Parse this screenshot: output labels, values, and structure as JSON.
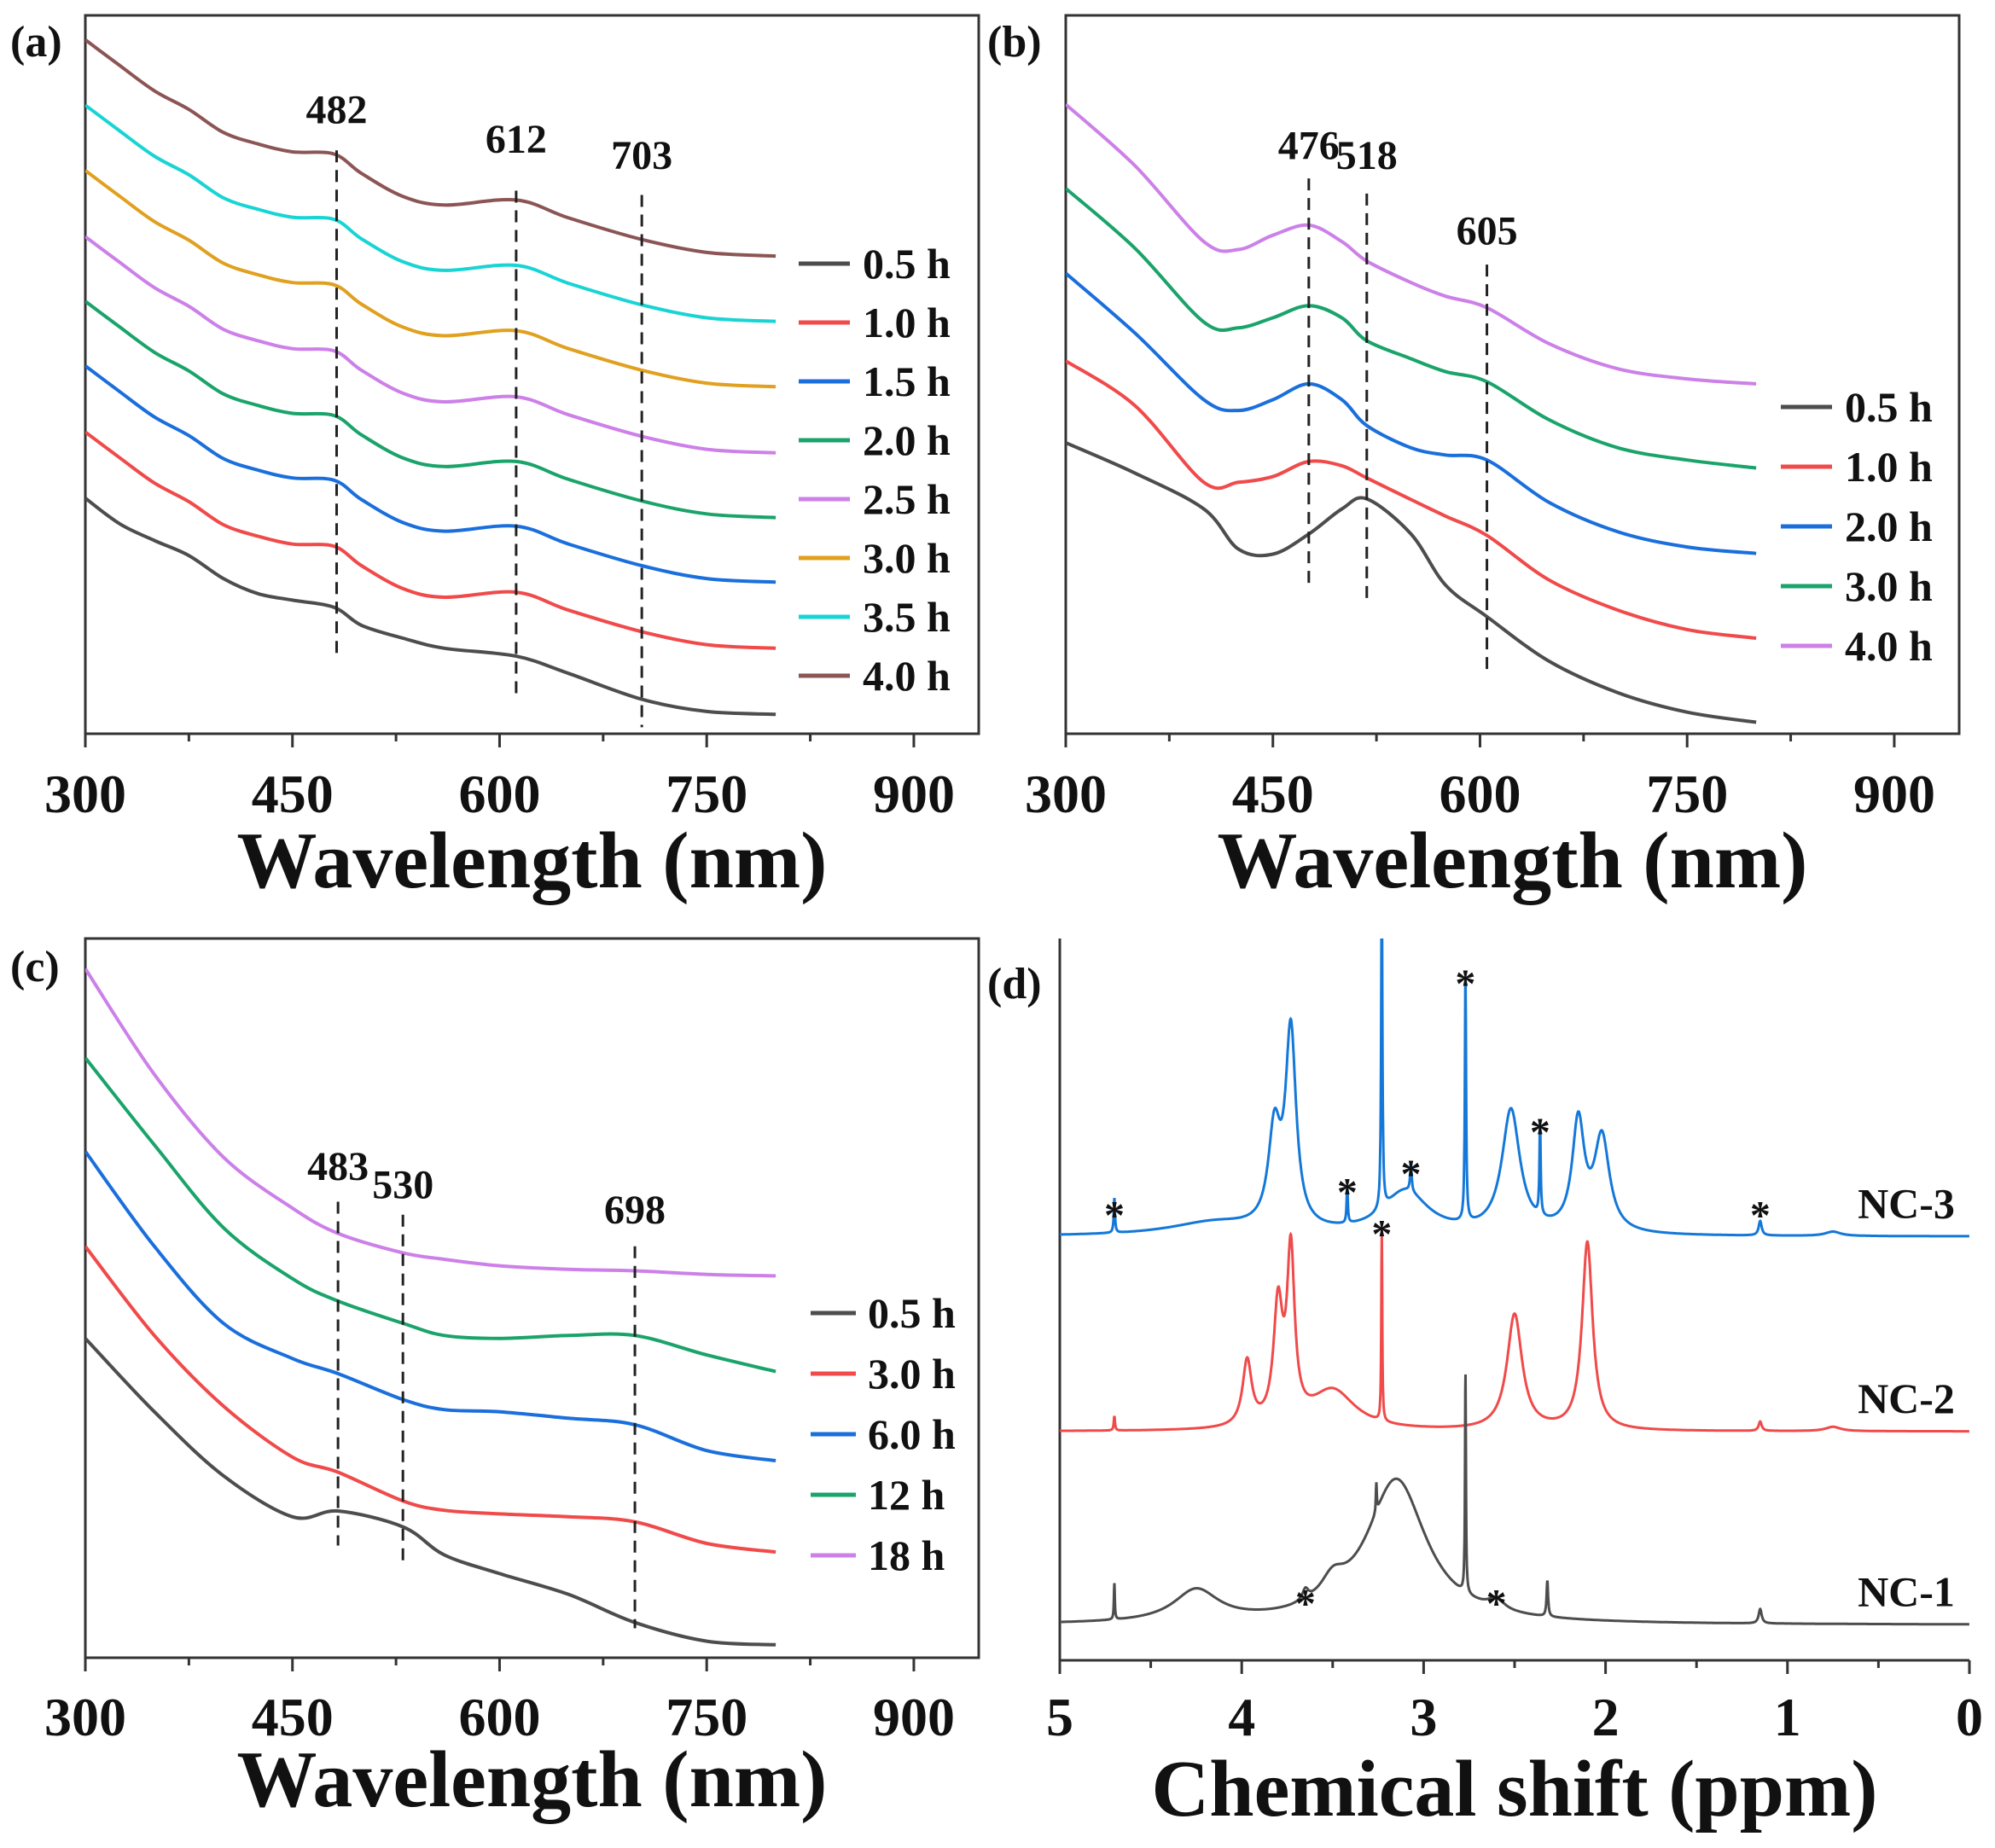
{
  "chart_data": [
    {
      "panel_label": "(a)",
      "type": "line",
      "xlabel": "Wavelength (nm)",
      "xlim": [
        300,
        947
      ],
      "ylim": [
        0,
        100
      ],
      "xticks": [
        300,
        450,
        600,
        750,
        900
      ],
      "grid": false,
      "legend": "right",
      "x": [
        300,
        325,
        350,
        375,
        400,
        425,
        450,
        480,
        500,
        530,
        560,
        612,
        650,
        703,
        750,
        800
      ],
      "series": [
        {
          "name": "0.5 h",
          "color": "#4d4d4d",
          "values": [
            32.8,
            29.2,
            26.9,
            24.8,
            21.6,
            19.5,
            18.6,
            17.6,
            15.1,
            13.3,
            11.9,
            10.8,
            8.4,
            4.8,
            3.1,
            2.7
          ]
        },
        {
          "name": "1.0 h",
          "color": "#f04a4a",
          "values": [
            42.0,
            38.4,
            34.9,
            32.3,
            29.1,
            27.5,
            26.4,
            26.1,
            23.4,
            20.2,
            19.0,
            19.7,
            17.2,
            14.2,
            12.4,
            11.9
          ]
        },
        {
          "name": "1.5 h",
          "color": "#1a6fdc",
          "values": [
            51.2,
            47.6,
            44.1,
            41.5,
            38.3,
            36.7,
            35.6,
            35.3,
            32.6,
            29.4,
            28.2,
            28.9,
            26.4,
            23.4,
            21.6,
            21.1
          ]
        },
        {
          "name": "2.0 h",
          "color": "#1aa36a",
          "values": [
            60.2,
            56.6,
            53.1,
            50.5,
            47.3,
            45.7,
            44.6,
            44.3,
            41.6,
            38.4,
            37.2,
            37.9,
            35.4,
            32.4,
            30.6,
            30.1
          ]
        },
        {
          "name": "2.5 h",
          "color": "#cc80e8",
          "values": [
            69.2,
            65.6,
            62.1,
            59.5,
            56.3,
            54.7,
            53.6,
            53.3,
            50.6,
            47.4,
            46.2,
            46.9,
            44.4,
            41.4,
            39.6,
            39.1
          ]
        },
        {
          "name": "3.0 h",
          "color": "#e0a020",
          "values": [
            78.4,
            74.8,
            71.3,
            68.7,
            65.5,
            63.9,
            62.8,
            62.5,
            59.8,
            56.6,
            55.4,
            56.1,
            53.6,
            50.6,
            48.8,
            48.3
          ]
        },
        {
          "name": "3.5 h",
          "color": "#19d4d4",
          "values": [
            87.5,
            83.9,
            80.4,
            77.8,
            74.6,
            73.0,
            71.9,
            71.6,
            68.9,
            65.7,
            64.5,
            65.2,
            62.7,
            59.7,
            57.9,
            57.4
          ]
        },
        {
          "name": "4.0 h",
          "color": "#8c5555",
          "values": [
            96.6,
            93.0,
            89.5,
            86.9,
            83.7,
            82.1,
            81.0,
            80.7,
            78.0,
            74.8,
            73.6,
            74.3,
            71.8,
            68.8,
            67.0,
            66.5
          ]
        }
      ],
      "annotations": [
        {
          "label": "482",
          "x": 482,
          "y_top": 81.2,
          "y_bottom": 11.0,
          "label_y": 85.0
        },
        {
          "label": "612",
          "x": 612,
          "y_top": 75.6,
          "y_bottom": 5.5,
          "label_y": 80.9
        },
        {
          "label": "703",
          "x": 703,
          "y_top": 75.0,
          "y_bottom": 0.9,
          "label_y": 78.6
        }
      ]
    },
    {
      "panel_label": "(b)",
      "type": "line",
      "xlabel": "Wavelength (nm)",
      "xlim": [
        300,
        947
      ],
      "ylim": [
        0,
        100
      ],
      "xticks": [
        300,
        450,
        600,
        750,
        900
      ],
      "grid": false,
      "legend": "right",
      "x": [
        300,
        350,
        400,
        425,
        450,
        476,
        500,
        518,
        550,
        575,
        605,
        650,
        700,
        750,
        800
      ],
      "series": [
        {
          "name": "0.5 h",
          "color": "#4d4d4d",
          "values": [
            40.5,
            36.3,
            31.3,
            25.7,
            25.0,
            27.8,
            31.3,
            32.7,
            27.8,
            20.7,
            16.3,
            10.1,
            5.7,
            3.0,
            1.6
          ]
        },
        {
          "name": "1.0 h",
          "color": "#f04a4a",
          "values": [
            51.9,
            45.7,
            35.0,
            35.0,
            35.8,
            37.9,
            37.3,
            35.6,
            32.6,
            30.3,
            27.6,
            21.4,
            17.2,
            14.5,
            13.3
          ]
        },
        {
          "name": "2.0 h",
          "color": "#1a6fdc",
          "values": [
            64.1,
            55.8,
            46.5,
            45.0,
            46.5,
            48.7,
            46.5,
            42.9,
            39.8,
            38.8,
            38.1,
            32.2,
            28.1,
            26.0,
            25.1
          ]
        },
        {
          "name": "3.0 h",
          "color": "#1aa36a",
          "values": [
            75.9,
            67.6,
            57.3,
            56.5,
            57.9,
            59.6,
            57.9,
            54.7,
            52.2,
            50.4,
            49.0,
            43.7,
            39.8,
            38.1,
            37.0
          ]
        },
        {
          "name": "4.0 h",
          "color": "#cc80e8",
          "values": [
            87.6,
            79.1,
            68.5,
            67.4,
            69.4,
            70.8,
            68.5,
            65.8,
            62.8,
            60.9,
            59.3,
            54.3,
            50.8,
            49.4,
            48.7
          ]
        }
      ],
      "annotations": [
        {
          "label": "476",
          "x": 476,
          "y_top": 77.3,
          "y_bottom": 20.7,
          "label_y": 80.0
        },
        {
          "label": "518",
          "x": 518,
          "y_top": 75.2,
          "y_bottom": 18.9,
          "label_y": 78.6
        },
        {
          "label": "605",
          "x": 605,
          "y_top": 65.3,
          "y_bottom": 8.3,
          "label_y": 68.1
        }
      ]
    },
    {
      "panel_label": "(c)",
      "type": "line",
      "xlabel": "Wavelength (nm)",
      "xlim": [
        300,
        947
      ],
      "ylim": [
        0,
        100
      ],
      "xticks": [
        300,
        450,
        600,
        750,
        900
      ],
      "grid": false,
      "legend": "right",
      "x": [
        300,
        350,
        400,
        450,
        483,
        530,
        560,
        600,
        650,
        698,
        750,
        800
      ],
      "series": [
        {
          "name": "0.5 h",
          "color": "#4d4d4d",
          "values": [
            44.4,
            34.2,
            25.3,
            19.6,
            20.4,
            18.2,
            14.3,
            11.7,
            8.8,
            4.9,
            2.3,
            1.8
          ]
        },
        {
          "name": "3.0 h",
          "color": "#f04a4a",
          "values": [
            57.2,
            44.8,
            35.0,
            27.9,
            25.8,
            21.8,
            20.5,
            20.0,
            19.6,
            18.9,
            15.9,
            14.7
          ]
        },
        {
          "name": "6.0 h",
          "color": "#1a6fdc",
          "values": [
            70.4,
            57.2,
            46.5,
            41.6,
            39.5,
            35.9,
            34.5,
            34.2,
            33.3,
            32.4,
            28.8,
            27.4
          ]
        },
        {
          "name": "12 h",
          "color": "#1aa36a",
          "values": [
            83.4,
            71.3,
            59.8,
            52.7,
            49.6,
            46.5,
            44.8,
            44.4,
            44.8,
            44.8,
            42.1,
            39.8
          ]
        },
        {
          "name": "18 h",
          "color": "#cc80e8",
          "values": [
            95.8,
            81.1,
            69.6,
            62.5,
            59.0,
            56.3,
            55.4,
            54.5,
            54.0,
            53.8,
            53.3,
            53.1
          ]
        }
      ],
      "annotations": [
        {
          "label": "483",
          "x": 483,
          "y_top": 63.4,
          "y_bottom": 15.6,
          "label_y": 66.4
        },
        {
          "label": "530",
          "x": 530,
          "y_top": 61.6,
          "y_bottom": 12.9,
          "label_y": 63.9
        },
        {
          "label": "698",
          "x": 698,
          "y_top": 57.2,
          "y_bottom": 4.1,
          "label_y": 60.4
        }
      ]
    },
    {
      "panel_label": "(d)",
      "type": "line",
      "xlabel": "Chemical shift (ppm)",
      "xlim": [
        5,
        0
      ],
      "ylim": [
        0,
        100
      ],
      "xticks": [
        5,
        4,
        3,
        2,
        1,
        0
      ],
      "grid": false,
      "legend": "none",
      "marker": "*",
      "series": [
        {
          "name": "NC-3",
          "color": "#1478d8",
          "baseline": 58.7,
          "peaks": [
            [
              4.7,
              4.8,
              0.004
            ],
            [
              4.15,
              1.8,
              0.3
            ],
            [
              3.82,
              13,
              0.04
            ],
            [
              3.73,
              27,
              0.035
            ],
            [
              3.42,
              5.1,
              0.004
            ],
            [
              3.23,
              45,
              0.004
            ],
            [
              3.1,
              6,
              0.15
            ],
            [
              3.07,
              4,
              0.005
            ],
            [
              2.77,
              34.2,
              0.004
            ],
            [
              2.52,
              17,
              0.06
            ],
            [
              2.36,
              13,
              0.004
            ],
            [
              2.15,
              15,
              0.04
            ],
            [
              2.02,
              13,
              0.05
            ],
            [
              1.15,
              2,
              0.01
            ],
            [
              0.75,
              0.6,
              0.05
            ]
          ],
          "stars": [
            [
              4.7,
              62.6
            ],
            [
              3.42,
              65.8
            ],
            [
              3.07,
              68.3
            ],
            [
              2.77,
              94.7
            ],
            [
              2.36,
              74.1
            ],
            [
              1.15,
              62.6
            ]
          ]
        },
        {
          "name": "NC-2",
          "color": "#f04a4a",
          "baseline": 31.7,
          "peaks": [
            [
              4.7,
              2,
              0.004
            ],
            [
              3.97,
              9,
              0.03
            ],
            [
              3.8,
              16,
              0.03
            ],
            [
              3.73,
              23,
              0.025
            ],
            [
              3.5,
              5.5,
              0.15
            ],
            [
              3.23,
              26.5,
              0.003
            ],
            [
              2.5,
              16,
              0.05
            ],
            [
              2.1,
              26,
              0.035
            ],
            [
              1.15,
              1.3,
              0.01
            ],
            [
              0.75,
              0.6,
              0.05
            ]
          ],
          "stars": [
            [
              3.23,
              60.0
            ]
          ]
        },
        {
          "name": "NC-1",
          "color": "#4d4d4d",
          "baseline": 4.9,
          "peaks": [
            [
              4.7,
              5,
              0.003
            ],
            [
              4.25,
              4.4,
              0.15
            ],
            [
              3.65,
              1.5,
              0.02
            ],
            [
              3.5,
              3,
              0.08
            ],
            [
              3.15,
              20,
              0.2
            ],
            [
              3.26,
              4,
              0.003
            ],
            [
              2.77,
              31,
              0.003
            ],
            [
              2.6,
              1.5,
              0.05
            ],
            [
              2.32,
              5,
              0.005
            ],
            [
              1.15,
              2,
              0.01
            ]
          ],
          "stars": [
            [
              3.65,
              8.8
            ],
            [
              2.6,
              8.8
            ]
          ]
        }
      ]
    }
  ]
}
